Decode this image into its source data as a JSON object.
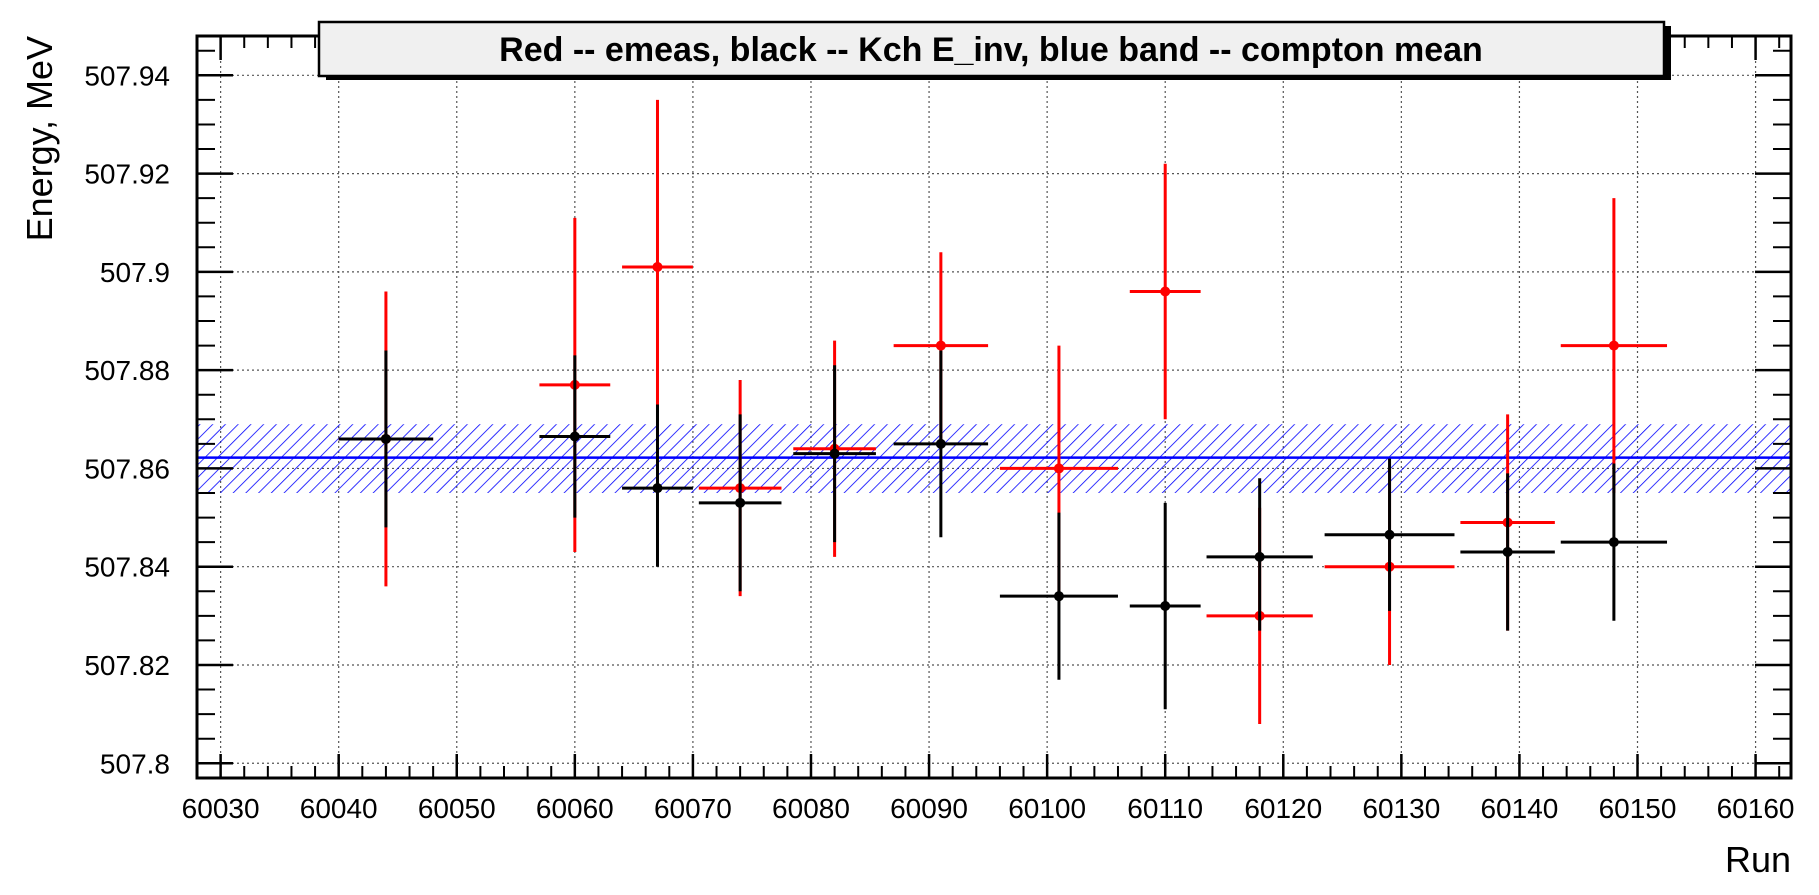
{
  "chart_data": {
    "type": "scatter",
    "title": "Red -- emeas, black -- Kch E_inv, blue band -- compton mean",
    "xlabel": "Run",
    "ylabel": "Energy, MeV",
    "xlim": [
      60028,
      60163
    ],
    "ylim": [
      507.797,
      507.948
    ],
    "x_ticks": [
      60030,
      60040,
      60050,
      60060,
      60070,
      60080,
      60090,
      60100,
      60110,
      60120,
      60130,
      60140,
      60150,
      60160
    ],
    "y_ticks": [
      507.8,
      507.82,
      507.84,
      507.86,
      507.88,
      507.9,
      507.92,
      507.94
    ],
    "x_tick_labels": [
      "60030",
      "60040",
      "60050",
      "60060",
      "60070",
      "60080",
      "60090",
      "60100",
      "60110",
      "60120",
      "60130",
      "60140",
      "60150",
      "60160"
    ],
    "y_tick_labels": [
      "507.8",
      "507.82",
      "507.84",
      "507.86",
      "507.88",
      "507.9",
      "507.92",
      "507.94"
    ],
    "grid": true,
    "band": {
      "color": "#0000ff",
      "mean": 507.8622,
      "low": 507.855,
      "high": 507.869,
      "x_range": [
        60028,
        60163
      ]
    },
    "series": [
      {
        "color": "#ff0000",
        "points": [
          {
            "x": 60044,
            "y": 507.866,
            "xerr": 4,
            "ylo": 507.836,
            "yhi": 507.896
          },
          {
            "x": 60060,
            "y": 507.877,
            "xerr": 3,
            "ylo": 507.843,
            "yhi": 507.911
          },
          {
            "x": 60067,
            "y": 507.901,
            "xerr": 3,
            "ylo": 507.867,
            "yhi": 507.935
          },
          {
            "x": 60074,
            "y": 507.856,
            "xerr": 3.5,
            "ylo": 507.834,
            "yhi": 507.878
          },
          {
            "x": 60082,
            "y": 507.864,
            "xerr": 3.5,
            "ylo": 507.842,
            "yhi": 507.886
          },
          {
            "x": 60091,
            "y": 507.885,
            "xerr": 4,
            "ylo": 507.866,
            "yhi": 507.904
          },
          {
            "x": 60101,
            "y": 507.86,
            "xerr": 5,
            "ylo": 507.835,
            "yhi": 507.885
          },
          {
            "x": 60110,
            "y": 507.896,
            "xerr": 3,
            "ylo": 507.87,
            "yhi": 507.922
          },
          {
            "x": 60118,
            "y": 507.83,
            "xerr": 4.5,
            "ylo": 507.808,
            "yhi": 507.852
          },
          {
            "x": 60129,
            "y": 507.84,
            "xerr": 5.5,
            "ylo": 507.82,
            "yhi": 507.86
          },
          {
            "x": 60139,
            "y": 507.849,
            "xerr": 4,
            "ylo": 507.827,
            "yhi": 507.871
          },
          {
            "x": 60148,
            "y": 507.885,
            "xerr": 4.5,
            "ylo": 507.855,
            "yhi": 507.915
          }
        ]
      },
      {
        "color": "#000000",
        "points": [
          {
            "x": 60044,
            "y": 507.866,
            "xerr": 4,
            "ylo": 507.848,
            "yhi": 507.884
          },
          {
            "x": 60060,
            "y": 507.8665,
            "xerr": 3,
            "ylo": 507.85,
            "yhi": 507.883
          },
          {
            "x": 60067,
            "y": 507.856,
            "xerr": 3,
            "ylo": 507.84,
            "yhi": 507.873
          },
          {
            "x": 60074,
            "y": 507.853,
            "xerr": 3.5,
            "ylo": 507.835,
            "yhi": 507.871
          },
          {
            "x": 60082,
            "y": 507.863,
            "xerr": 3.5,
            "ylo": 507.845,
            "yhi": 507.881
          },
          {
            "x": 60091,
            "y": 507.865,
            "xerr": 4,
            "ylo": 507.846,
            "yhi": 507.884
          },
          {
            "x": 60101,
            "y": 507.834,
            "xerr": 5,
            "ylo": 507.817,
            "yhi": 507.851
          },
          {
            "x": 60110,
            "y": 507.832,
            "xerr": 3,
            "ylo": 507.811,
            "yhi": 507.853
          },
          {
            "x": 60118,
            "y": 507.842,
            "xerr": 4.5,
            "ylo": 507.827,
            "yhi": 507.858
          },
          {
            "x": 60129,
            "y": 507.8465,
            "xerr": 5.5,
            "ylo": 507.831,
            "yhi": 507.862
          },
          {
            "x": 60139,
            "y": 507.843,
            "xerr": 4,
            "ylo": 507.827,
            "yhi": 507.859
          },
          {
            "x": 60148,
            "y": 507.845,
            "xerr": 4.5,
            "ylo": 507.829,
            "yhi": 507.861
          }
        ]
      }
    ]
  }
}
